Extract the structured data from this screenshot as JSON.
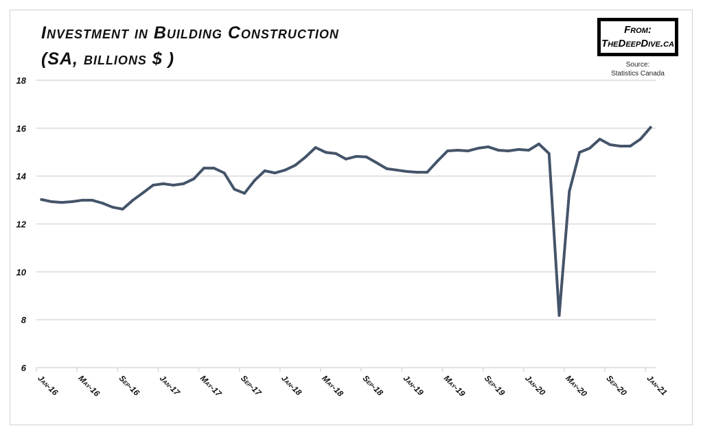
{
  "chart_data": {
    "type": "line",
    "title": "Investment in Building Construction",
    "subtitle": "(SA, billions $ )",
    "ylim": [
      6,
      18
    ],
    "yticks": [
      6,
      8,
      10,
      12,
      14,
      16,
      18
    ],
    "grid": true,
    "line_color": "#44546a",
    "x_tick_labels": [
      "Jan-16",
      "May-16",
      "Sep-16",
      "Jan-17",
      "May-17",
      "Sep-17",
      "Jan-18",
      "May-18",
      "Sep-18",
      "Jan-19",
      "May-19",
      "Sep-19",
      "Jan-20",
      "May-20",
      "Sep-20",
      "Jan-21"
    ],
    "x": [
      "Jan-16",
      "Feb-16",
      "Mar-16",
      "Apr-16",
      "May-16",
      "Jun-16",
      "Jul-16",
      "Aug-16",
      "Sep-16",
      "Oct-16",
      "Nov-16",
      "Dec-16",
      "Jan-17",
      "Feb-17",
      "Mar-17",
      "Apr-17",
      "May-17",
      "Jun-17",
      "Jul-17",
      "Aug-17",
      "Sep-17",
      "Oct-17",
      "Nov-17",
      "Dec-17",
      "Jan-18",
      "Feb-18",
      "Mar-18",
      "Apr-18",
      "May-18",
      "Jun-18",
      "Jul-18",
      "Aug-18",
      "Sep-18",
      "Oct-18",
      "Nov-18",
      "Dec-18",
      "Jan-19",
      "Feb-19",
      "Mar-19",
      "Apr-19",
      "May-19",
      "Jun-19",
      "Jul-19",
      "Aug-19",
      "Sep-19",
      "Oct-19",
      "Nov-19",
      "Dec-19",
      "Jan-20",
      "Feb-20",
      "Mar-20",
      "Apr-20",
      "May-20",
      "Jun-20",
      "Jul-20",
      "Aug-20",
      "Sep-20",
      "Oct-20",
      "Nov-20",
      "Dec-20",
      "Jan-21"
    ],
    "values": [
      13.02,
      12.93,
      12.9,
      12.93,
      12.99,
      12.99,
      12.87,
      12.7,
      12.62,
      12.99,
      13.3,
      13.62,
      13.68,
      13.62,
      13.68,
      13.88,
      14.33,
      14.33,
      14.13,
      13.45,
      13.28,
      13.82,
      14.22,
      14.13,
      14.25,
      14.45,
      14.79,
      15.19,
      14.99,
      14.94,
      14.71,
      14.82,
      14.8,
      14.56,
      14.31,
      14.25,
      14.19,
      14.16,
      14.16,
      14.62,
      15.05,
      15.08,
      15.05,
      15.16,
      15.22,
      15.08,
      15.05,
      15.11,
      15.08,
      15.34,
      14.94,
      8.18,
      13.36,
      14.99,
      15.16,
      15.54,
      15.31,
      15.25,
      15.25,
      15.54,
      16.03
    ]
  },
  "logo": {
    "line1": "From:",
    "line2": "TheDeepDive.ca"
  },
  "source": {
    "label": "Source:",
    "name": "Statistics Canada"
  }
}
